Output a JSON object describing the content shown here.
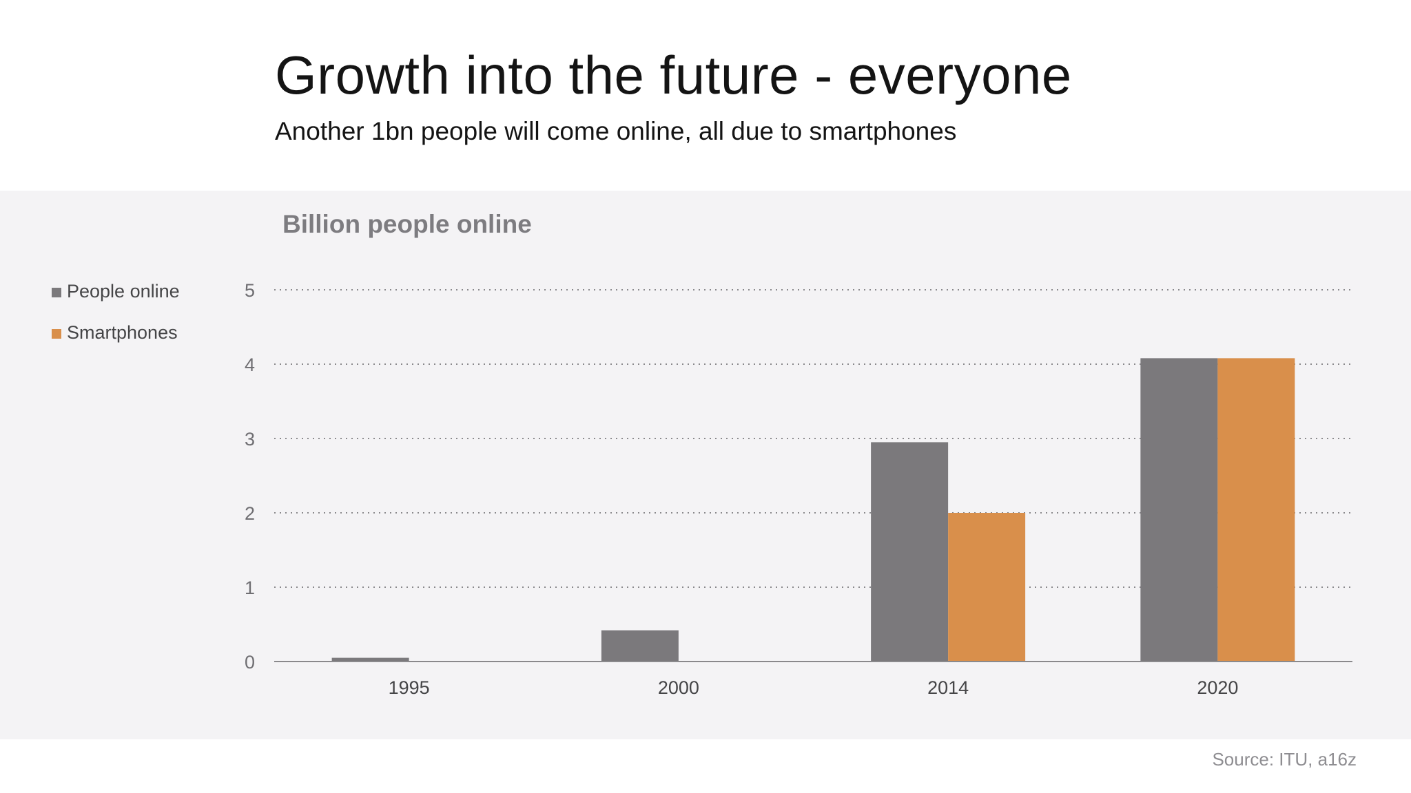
{
  "header": {
    "title": "Growth into the future - everyone",
    "subtitle": "Another 1bn people will come online, all due to smartphones"
  },
  "footer": {
    "source": "Source: ITU, a16z"
  },
  "chart_data": {
    "type": "bar",
    "title": "Billion people online",
    "xlabel": "",
    "ylabel": "",
    "categories": [
      "1995",
      "2000",
      "2014",
      "2020"
    ],
    "series": [
      {
        "name": "People online",
        "color": "#7b797c",
        "values": [
          0.05,
          0.42,
          2.95,
          4.08
        ]
      },
      {
        "name": "Smartphones",
        "color": "#d98f4b",
        "values": [
          0,
          0,
          2.0,
          4.08
        ]
      }
    ],
    "ylim": [
      0,
      5
    ],
    "yticks": [
      "0",
      "1",
      "2",
      "3",
      "4",
      "5"
    ],
    "grid": true,
    "legend_position": "left"
  }
}
